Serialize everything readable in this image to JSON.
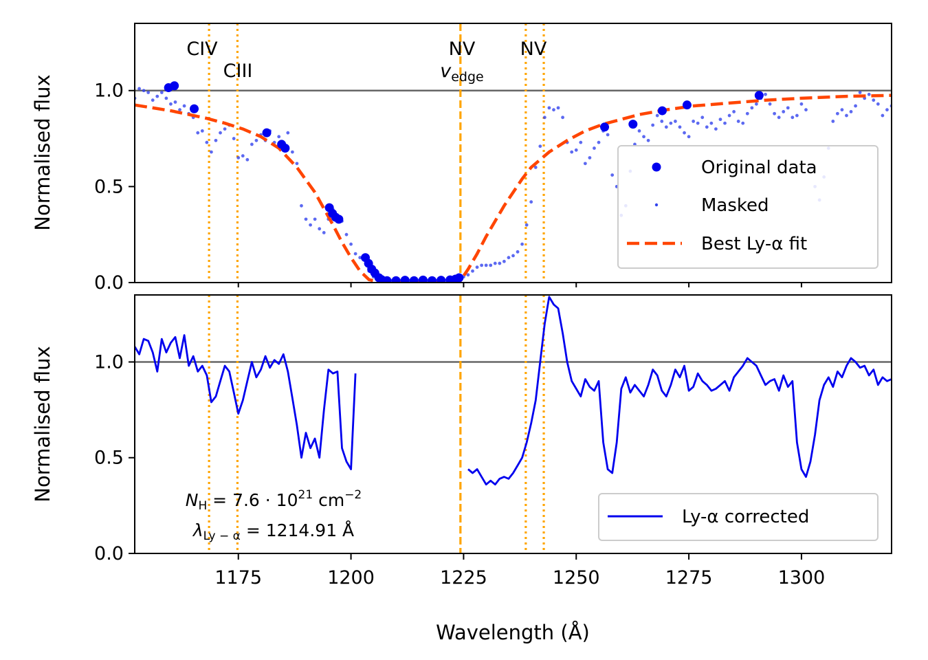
{
  "chart_data": [
    {
      "type": "scatter",
      "panel": "top",
      "ylabel": "Normalised flux",
      "xlabel": "",
      "xlim": [
        1152,
        1320
      ],
      "ylim": [
        0.0,
        1.35
      ],
      "yticks": [
        0.0,
        0.5,
        1.0
      ],
      "yticklabels": [
        "0.0",
        "0.5",
        "1.0"
      ],
      "reference_line_y": 1.0,
      "legend_position": "center-right",
      "vertical_lines": [
        {
          "name": "civ-line",
          "x": 1168.5,
          "style": "dotted",
          "label": "CIV"
        },
        {
          "name": "ciii-line",
          "x": 1174.8,
          "style": "dotted",
          "label": "CIII"
        },
        {
          "name": "nv-edge-line",
          "x": 1224.3,
          "style": "dashed",
          "label": "NV"
        },
        {
          "name": "nv-line-1",
          "x": 1238.8,
          "style": "dotted",
          "label": "NV"
        },
        {
          "name": "nv-line-2",
          "x": 1242.8,
          "style": "dotted",
          "label": ""
        }
      ],
      "edge_label": "v",
      "edge_label_sub": "edge",
      "series": [
        {
          "name": "Original data",
          "marker": "large-dot",
          "color": "#0000ee",
          "x": [
            1159.5,
            1160.8,
            1165.2,
            1181.3,
            1184.6,
            1185.4,
            1195.2,
            1195.9,
            1196.6,
            1197.3,
            1203.2,
            1203.9,
            1204.6,
            1205.3,
            1206.2,
            1206.8,
            1208,
            1210,
            1212,
            1214,
            1216,
            1218,
            1220,
            1222,
            1223.2,
            1224,
            1256.3,
            1262.6,
            1269.1,
            1274.6,
            1290.6
          ],
          "y": [
            1.015,
            1.025,
            0.905,
            0.78,
            0.72,
            0.7,
            0.39,
            0.36,
            0.34,
            0.33,
            0.13,
            0.1,
            0.07,
            0.05,
            0.025,
            0.015,
            0.01,
            0.01,
            0.012,
            0.01,
            0.013,
            0.01,
            0.012,
            0.014,
            0.018,
            0.025,
            0.81,
            0.825,
            0.895,
            0.925,
            0.975
          ]
        },
        {
          "name": "Masked",
          "marker": "small-dot",
          "color": "#3344ee",
          "x": [
            1152,
            1153,
            1154,
            1155,
            1156,
            1157,
            1158,
            1159,
            1160,
            1161,
            1162,
            1163,
            1164,
            1165,
            1166,
            1167,
            1168,
            1169,
            1170,
            1171,
            1172,
            1173,
            1174,
            1175,
            1176,
            1177,
            1178,
            1179,
            1180,
            1181,
            1182,
            1183,
            1184,
            1185,
            1186,
            1187,
            1188,
            1189,
            1190,
            1191,
            1192,
            1193,
            1194,
            1195,
            1196,
            1197,
            1198,
            1199,
            1200,
            1201,
            1202,
            1203,
            1204,
            1205,
            1206,
            1207,
            1208,
            1209,
            1210,
            1211,
            1212,
            1213,
            1214,
            1215,
            1216,
            1217,
            1218,
            1219,
            1220,
            1221,
            1222,
            1223,
            1224,
            1225,
            1226,
            1227,
            1228,
            1229,
            1230,
            1231,
            1232,
            1233,
            1234,
            1235,
            1236,
            1237,
            1238,
            1239,
            1240,
            1241,
            1242,
            1243,
            1244,
            1245,
            1246,
            1247,
            1248,
            1249,
            1250,
            1251,
            1252,
            1253,
            1254,
            1255,
            1256,
            1257,
            1258,
            1259,
            1260,
            1261,
            1262,
            1263,
            1264,
            1265,
            1266,
            1267,
            1268,
            1269,
            1270,
            1271,
            1272,
            1273,
            1274,
            1275,
            1276,
            1277,
            1278,
            1279,
            1280,
            1281,
            1282,
            1283,
            1284,
            1285,
            1286,
            1287,
            1288,
            1289,
            1290,
            1291,
            1292,
            1293,
            1294,
            1295,
            1296,
            1297,
            1298,
            1299,
            1300,
            1301,
            1302,
            1303,
            1304,
            1305,
            1306,
            1307,
            1308,
            1309,
            1310,
            1311,
            1312,
            1313,
            1314,
            1315,
            1316,
            1317,
            1318,
            1319,
            1320
          ],
          "y": [
            0.96,
            1.01,
            1.0,
            0.99,
            0.95,
            0.97,
            0.99,
            0.96,
            0.93,
            0.94,
            0.9,
            0.92,
            0.88,
            0.86,
            0.78,
            0.79,
            0.73,
            0.68,
            0.74,
            0.78,
            0.8,
            0.82,
            0.75,
            0.65,
            0.66,
            0.64,
            0.72,
            0.74,
            0.77,
            0.74,
            0.79,
            0.73,
            0.76,
            0.72,
            0.78,
            0.68,
            0.62,
            0.4,
            0.33,
            0.3,
            0.33,
            0.28,
            0.26,
            0.33,
            0.38,
            0.34,
            0.32,
            0.25,
            0.2,
            0.15,
            0.13,
            0.12,
            0.06,
            0.03,
            0.015,
            0.01,
            0.01,
            0.01,
            0.01,
            0.01,
            0.01,
            0.01,
            0.01,
            0.01,
            0.01,
            0.01,
            0.01,
            0.01,
            0.01,
            0.01,
            0.01,
            0.015,
            0.02,
            0.03,
            0.04,
            0.06,
            0.08,
            0.09,
            0.09,
            0.09,
            0.1,
            0.1,
            0.11,
            0.13,
            0.14,
            0.16,
            0.2,
            0.3,
            0.42,
            0.6,
            0.71,
            0.86,
            0.91,
            0.9,
            0.91,
            0.86,
            0.73,
            0.68,
            0.69,
            0.73,
            0.62,
            0.65,
            0.7,
            0.73,
            0.79,
            0.77,
            0.56,
            0.5,
            0.35,
            0.4,
            0.58,
            0.72,
            0.79,
            0.76,
            0.74,
            0.82,
            0.87,
            0.84,
            0.81,
            0.83,
            0.84,
            0.81,
            0.78,
            0.76,
            0.84,
            0.83,
            0.86,
            0.81,
            0.83,
            0.8,
            0.85,
            0.83,
            0.87,
            0.89,
            0.84,
            0.83,
            0.88,
            0.91,
            0.93,
            0.96,
            0.98,
            0.93,
            0.88,
            0.86,
            0.89,
            0.91,
            0.86,
            0.87,
            0.93,
            0.9,
            0.6,
            0.5,
            0.43,
            0.55,
            0.7,
            0.84,
            0.88,
            0.9,
            0.87,
            0.89,
            0.92,
            0.99,
            0.96,
            0.98,
            0.95,
            0.93,
            0.87,
            0.9,
            0.92
          ]
        },
        {
          "name": "Best Ly-α fit",
          "marker": "dashed-line",
          "color": "#ff4500",
          "x": [
            1152,
            1156,
            1160,
            1164,
            1168,
            1172,
            1176,
            1180,
            1184,
            1188,
            1192,
            1196,
            1198,
            1200,
            1202,
            1204,
            1206,
            1208,
            1224,
            1226,
            1228,
            1230,
            1232,
            1234,
            1236,
            1238,
            1240,
            1244,
            1248,
            1252,
            1256,
            1260,
            1264,
            1270,
            1276,
            1284,
            1292,
            1300,
            1310,
            1320
          ],
          "y": [
            0.925,
            0.91,
            0.895,
            0.875,
            0.855,
            0.83,
            0.8,
            0.76,
            0.7,
            0.6,
            0.47,
            0.3,
            0.21,
            0.13,
            0.06,
            0.015,
            0.005,
            0.0,
            0.0,
            0.07,
            0.15,
            0.24,
            0.32,
            0.4,
            0.47,
            0.54,
            0.6,
            0.68,
            0.74,
            0.79,
            0.825,
            0.85,
            0.875,
            0.9,
            0.92,
            0.935,
            0.95,
            0.96,
            0.97,
            0.975
          ]
        }
      ]
    },
    {
      "type": "line",
      "panel": "bottom",
      "ylabel": "Normalised flux",
      "xlabel": "Wavelength (Å)",
      "xlim": [
        1152,
        1320
      ],
      "ylim": [
        0.0,
        1.35
      ],
      "xticks": [
        1175,
        1200,
        1225,
        1250,
        1275,
        1300
      ],
      "xticklabels": [
        "1175",
        "1200",
        "1225",
        "1250",
        "1275",
        "1300"
      ],
      "yticks": [
        0.0,
        0.5,
        1.0
      ],
      "yticklabels": [
        "0.0",
        "0.5",
        "1.0"
      ],
      "reference_line_y": 1.0,
      "legend_position": "lower-right",
      "annotation": {
        "nh_symbol": "N",
        "nh_sub": "H",
        "nh_value": " = 7.6 · 10",
        "nh_exp": "21",
        "nh_unit": " cm",
        "nh_unit_exp": "−2",
        "lambda_symbol": "λ",
        "lambda_sub": "Ly − α",
        "lambda_value": " = 1214.91 Å"
      },
      "series": [
        {
          "name": "Ly-α corrected",
          "color": "#0000ee",
          "segments": [
            {
              "x": [
                1152,
                1153,
                1154,
                1155,
                1156,
                1157,
                1158,
                1159,
                1160,
                1161,
                1162,
                1163,
                1164,
                1165,
                1166,
                1167,
                1168,
                1169,
                1170,
                1171,
                1172,
                1173,
                1174,
                1175,
                1176,
                1177,
                1178,
                1179,
                1180,
                1181,
                1182,
                1183,
                1184,
                1185,
                1186,
                1187,
                1188,
                1189,
                1190,
                1191,
                1192,
                1193,
                1194,
                1195,
                1196,
                1197,
                1198,
                1199,
                1200,
                1201
              ],
              "y": [
                1.08,
                1.04,
                1.12,
                1.11,
                1.05,
                0.95,
                1.12,
                1.05,
                1.1,
                1.13,
                1.02,
                1.14,
                0.98,
                1.03,
                0.95,
                0.98,
                0.93,
                0.79,
                0.82,
                0.9,
                0.98,
                0.95,
                0.84,
                0.73,
                0.8,
                0.9,
                1.0,
                0.92,
                0.96,
                1.03,
                0.97,
                1.01,
                0.99,
                1.04,
                0.95,
                0.81,
                0.67,
                0.5,
                0.63,
                0.55,
                0.6,
                0.5,
                0.75,
                0.96,
                0.94,
                0.95,
                0.55,
                0.48,
                0.44,
                0.94
              ]
            },
            {
              "x": [
                1226,
                1227,
                1228,
                1229,
                1230,
                1231,
                1232,
                1233,
                1234,
                1235,
                1236,
                1237,
                1238,
                1239,
                1240,
                1241,
                1242,
                1243,
                1244,
                1245,
                1246,
                1247,
                1248,
                1249,
                1250,
                1251,
                1252,
                1253,
                1254,
                1255,
                1256,
                1257,
                1258,
                1259,
                1260,
                1261,
                1262,
                1263,
                1264,
                1265,
                1266,
                1267,
                1268,
                1269,
                1270,
                1271,
                1272,
                1273,
                1274,
                1275,
                1276,
                1277,
                1278,
                1279,
                1280,
                1281,
                1282,
                1283,
                1284,
                1285,
                1286,
                1287,
                1288,
                1289,
                1290,
                1291,
                1292,
                1293,
                1294,
                1295,
                1296,
                1297,
                1298,
                1299,
                1300,
                1301,
                1302,
                1303,
                1304,
                1305,
                1306,
                1307,
                1308,
                1309,
                1310,
                1311,
                1312,
                1313,
                1314,
                1315,
                1316,
                1317,
                1318,
                1319,
                1320
              ],
              "y": [
                0.44,
                0.42,
                0.44,
                0.4,
                0.36,
                0.38,
                0.36,
                0.39,
                0.4,
                0.39,
                0.42,
                0.46,
                0.5,
                0.58,
                0.68,
                0.8,
                1.0,
                1.2,
                1.34,
                1.3,
                1.28,
                1.15,
                1.0,
                0.9,
                0.86,
                0.82,
                0.91,
                0.87,
                0.85,
                0.9,
                0.58,
                0.44,
                0.42,
                0.58,
                0.86,
                0.92,
                0.84,
                0.88,
                0.85,
                0.82,
                0.88,
                0.96,
                0.93,
                0.85,
                0.82,
                0.88,
                0.96,
                0.92,
                0.98,
                0.85,
                0.87,
                0.94,
                0.9,
                0.88,
                0.85,
                0.86,
                0.88,
                0.9,
                0.85,
                0.92,
                0.95,
                0.98,
                1.02,
                1.0,
                0.98,
                0.93,
                0.88,
                0.9,
                0.91,
                0.85,
                0.93,
                0.87,
                0.9,
                0.58,
                0.44,
                0.4,
                0.48,
                0.62,
                0.8,
                0.88,
                0.92,
                0.87,
                0.95,
                0.92,
                0.98,
                1.02,
                1.0,
                0.97,
                0.98,
                0.93,
                0.96,
                0.88,
                0.92,
                0.9,
                0.91
              ]
            }
          ]
        }
      ]
    }
  ]
}
